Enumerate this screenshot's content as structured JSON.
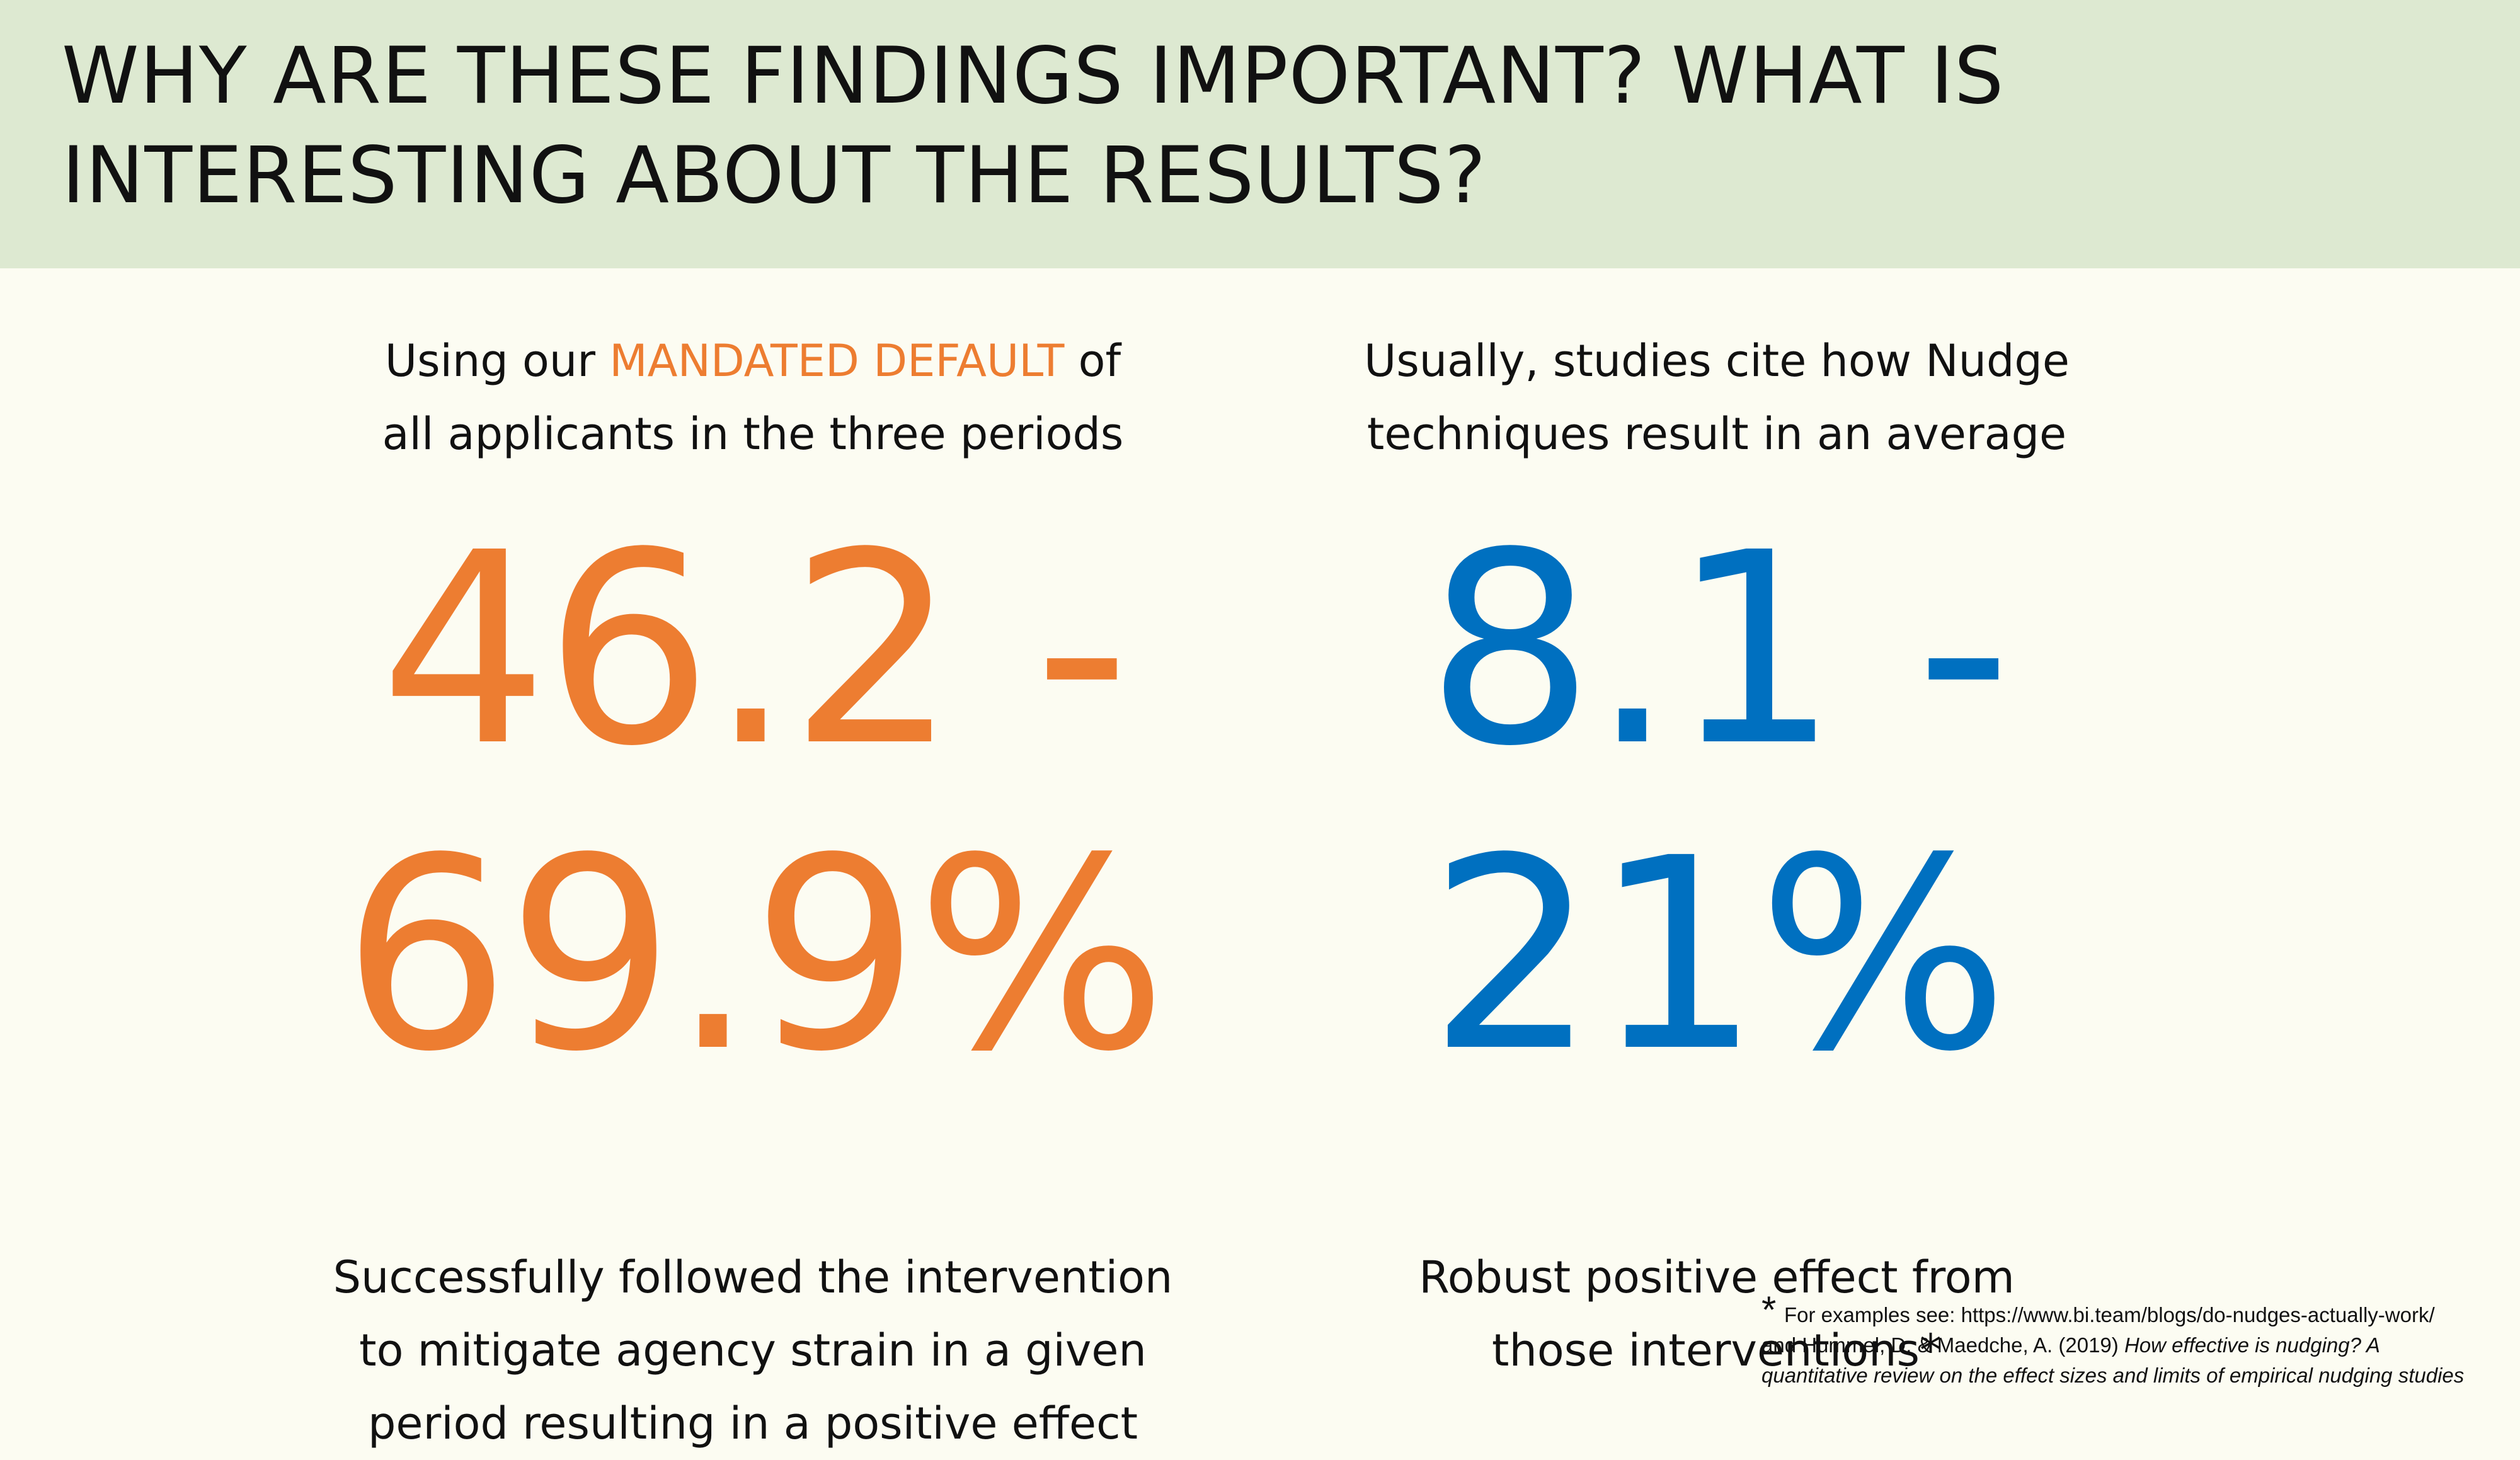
{
  "header": {
    "title_line1": "WHY ARE THESE FINDINGS IMPORTANT? WHAT IS",
    "title_line2": "INTERESTING ABOUT THE RESULTS?"
  },
  "left": {
    "intro_before": "Using our ",
    "intro_highlight": "MANDATED DEFAULT",
    "intro_after": " of",
    "intro_line2": "all applicants in the three periods",
    "big_line1": "46.2 -",
    "big_line2": "69.9%",
    "outro_line1": "Successfully followed the intervention",
    "outro_line2": "to mitigate agency strain in a given",
    "outro_line3": "period resulting in a positive effect"
  },
  "right": {
    "intro_line1": "Usually, studies cite how Nudge",
    "intro_line2": "techniques result in an average",
    "big_line1": "8.1 -",
    "big_line2": "21%",
    "outro_line1": "Robust positive effect from",
    "outro_line2": "those interventions*"
  },
  "footnote": {
    "marker": "*",
    "line1": "For examples see: https://www.bi.team/blogs/do-nudges-actually-work/",
    "line2_plain": "and Hummel, D. & Maedche, A. (2019) ",
    "line2_italic": "How effective is nudging? A",
    "line3_italic": "quantitative review on the effect sizes and limits of empirical nudging studies"
  },
  "colors": {
    "header_bg": "#dde9d1",
    "page_bg": "#fcfcf2",
    "orange": "#ed7d31",
    "blue": "#0070c0"
  }
}
